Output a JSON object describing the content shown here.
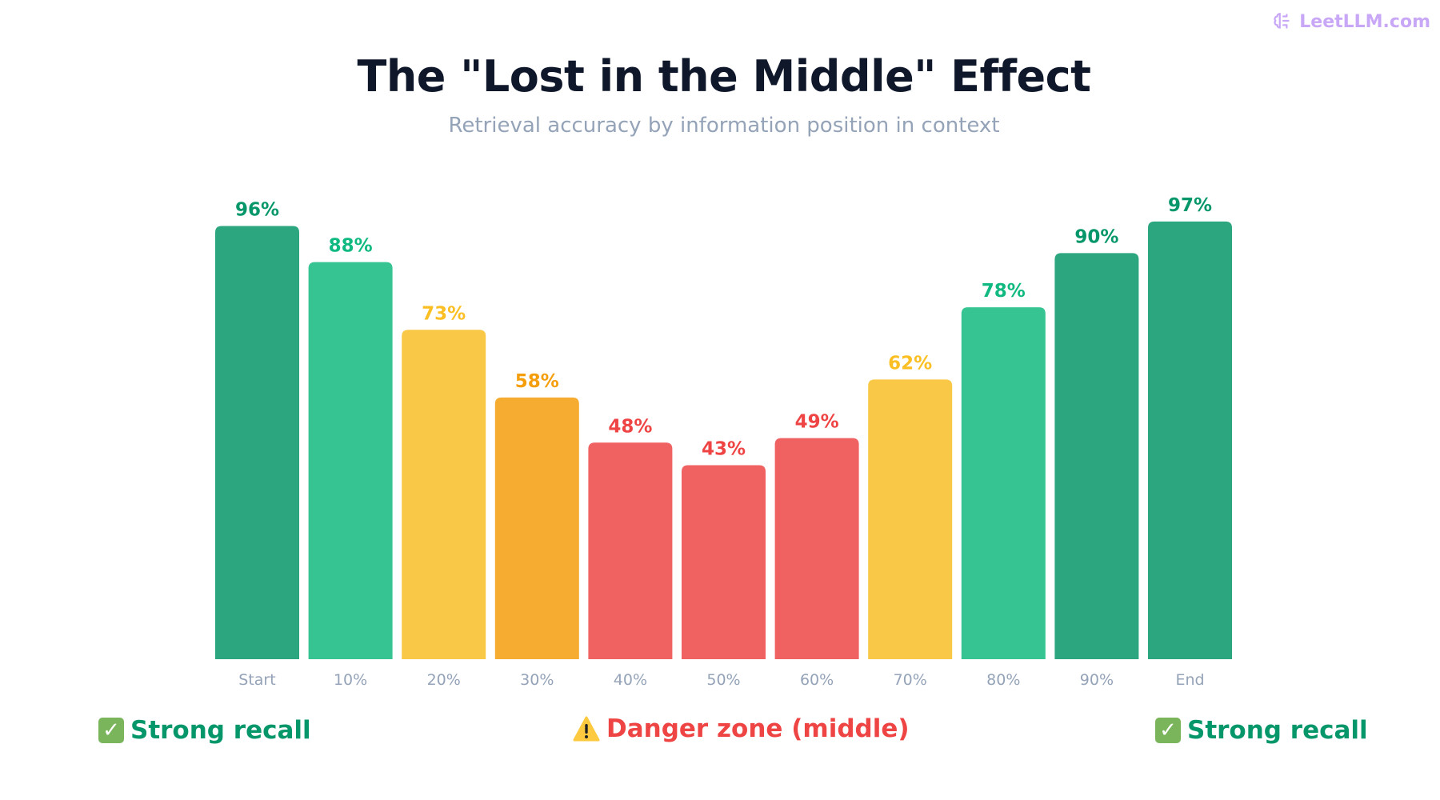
{
  "brand": {
    "name": "LeetLLM.com",
    "icon": "brain-icon",
    "color": "#c9a7f7"
  },
  "title": "The \"Lost in the Middle\" Effect",
  "subtitle": "Retrieval accuracy by information position in context",
  "chart_data": {
    "type": "bar",
    "categories": [
      "Start",
      "10%",
      "20%",
      "30%",
      "40%",
      "50%",
      "60%",
      "70%",
      "80%",
      "90%",
      "End"
    ],
    "values": [
      96,
      88,
      73,
      58,
      48,
      43,
      49,
      62,
      78,
      90,
      97
    ],
    "value_labels": [
      "96%",
      "88%",
      "73%",
      "58%",
      "48%",
      "43%",
      "49%",
      "62%",
      "78%",
      "90%",
      "97%"
    ],
    "bar_colors": [
      "#2ba67f",
      "#36c493",
      "#f9c846",
      "#f5ac30",
      "#f06262",
      "#f06262",
      "#f06262",
      "#f9c846",
      "#36c493",
      "#2ba67f",
      "#2ba67f"
    ],
    "label_colors": [
      "#059669",
      "#10b981",
      "#fbbf24",
      "#f59e0b",
      "#ef4444",
      "#ef4444",
      "#ef4444",
      "#fbbf24",
      "#10b981",
      "#059669",
      "#059669"
    ],
    "ylim": [
      0,
      100
    ],
    "grid": false,
    "xlabel": "",
    "ylabel": ""
  },
  "legend": {
    "left": {
      "icon": "check-icon",
      "label": "Strong recall"
    },
    "middle": {
      "icon": "warning-icon",
      "label": "Danger zone (middle)"
    },
    "right": {
      "icon": "check-icon",
      "label": "Strong recall"
    }
  }
}
